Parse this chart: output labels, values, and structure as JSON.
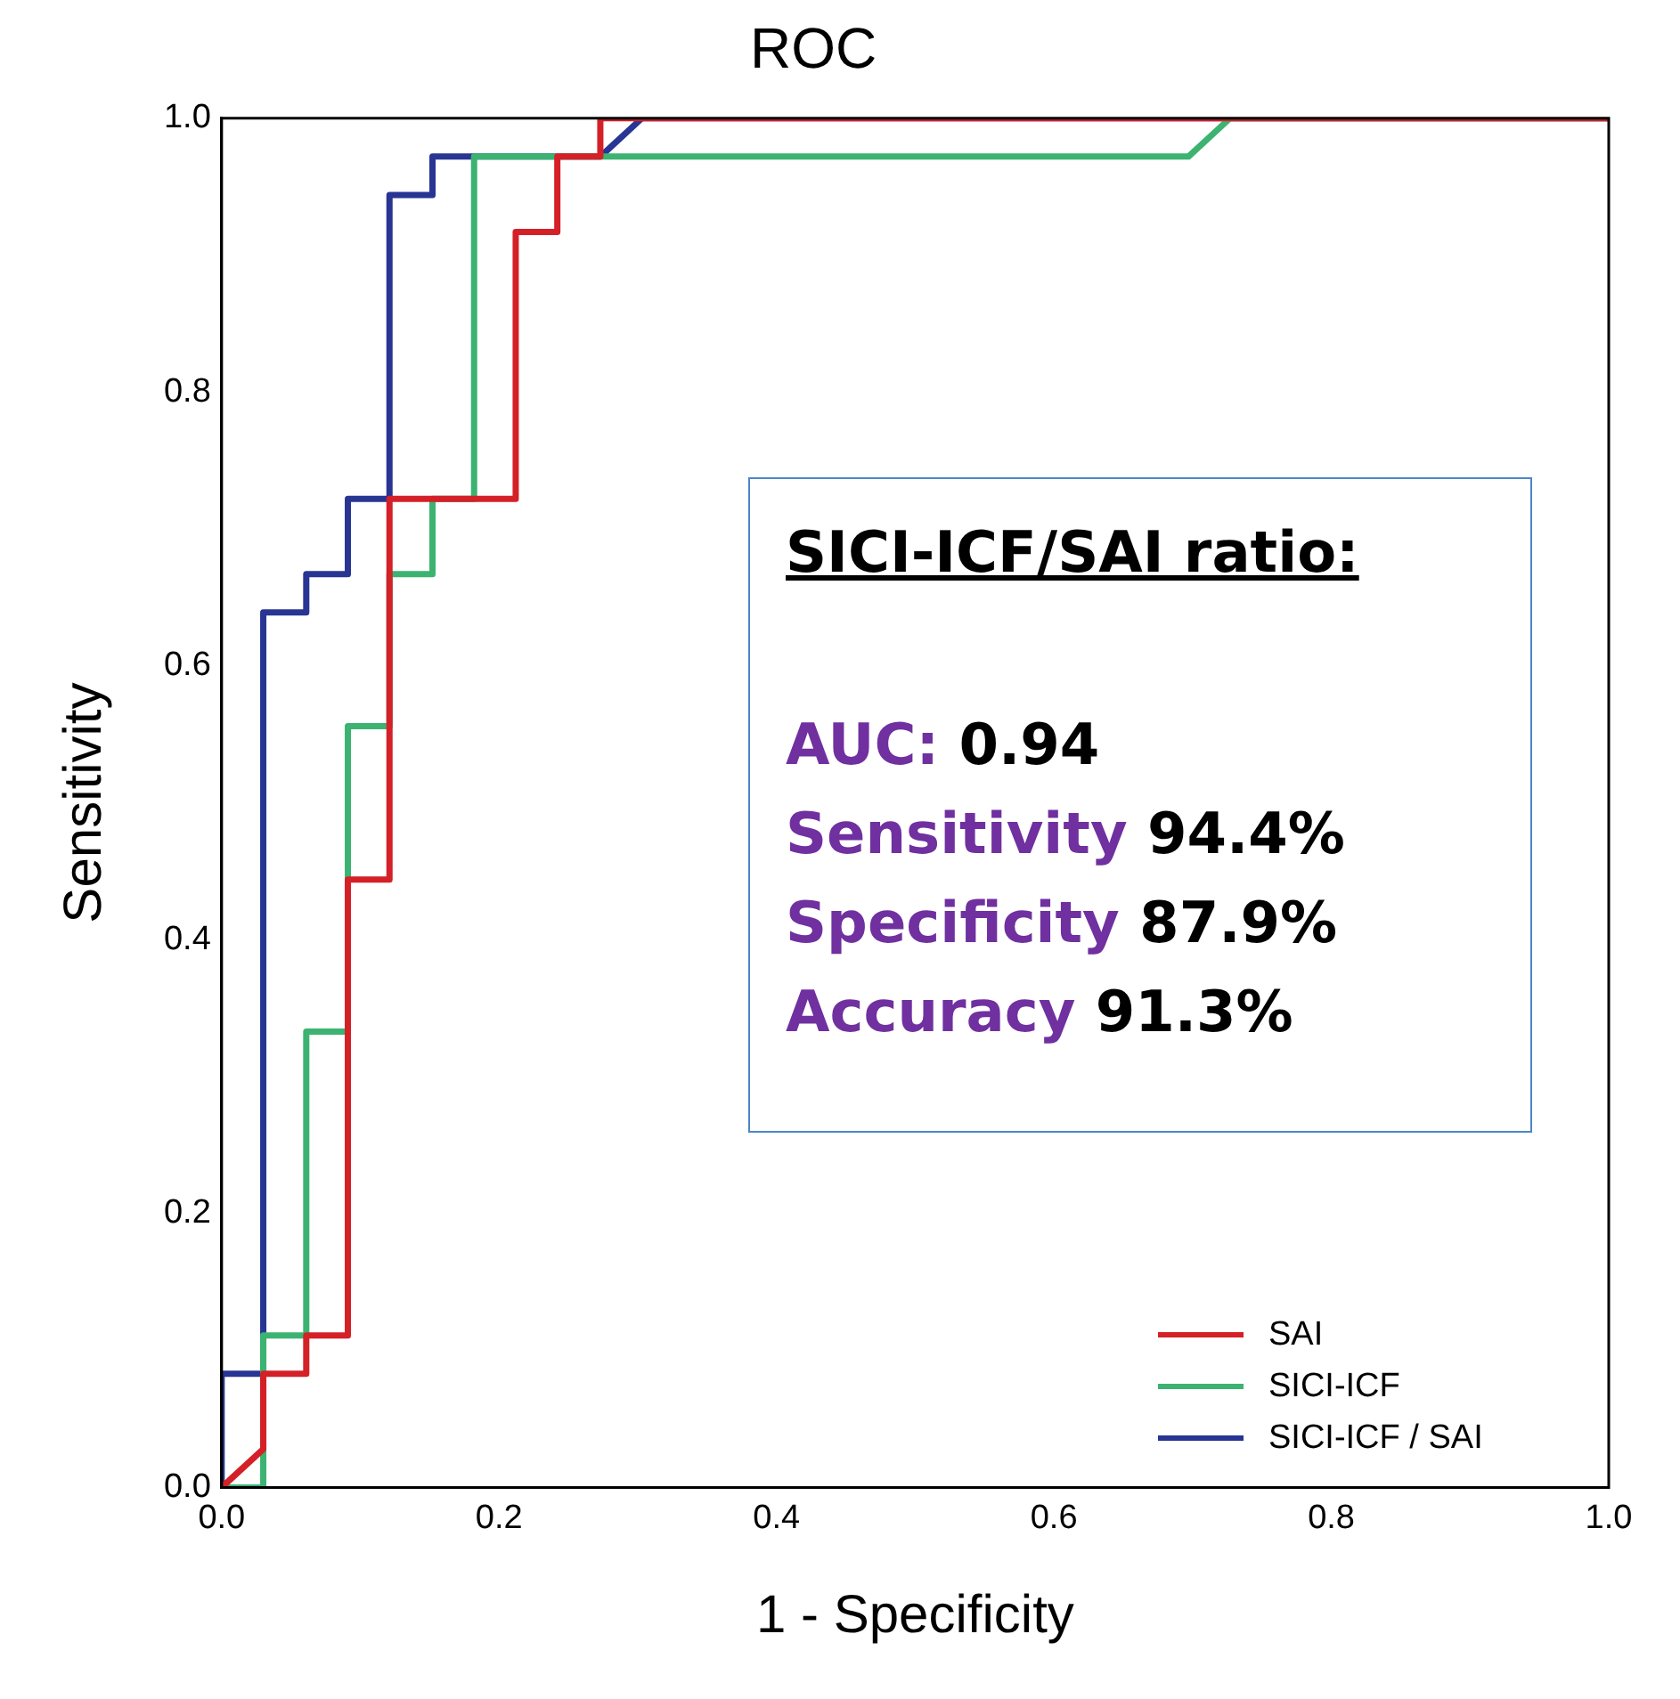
{
  "chart_data": {
    "type": "line",
    "title": "ROC",
    "xlabel": "1 - Specificity",
    "ylabel": "Sensitivity",
    "xlim": [
      0,
      1
    ],
    "ylim": [
      0,
      1
    ],
    "xticks": [
      {
        "value": 0,
        "label": "0.0"
      },
      0.2,
      0.4,
      0.6,
      0.8,
      {
        "value": 1,
        "label": "1.0"
      }
    ],
    "yticks": [
      {
        "value": 0,
        "label": "0.0"
      },
      0.2,
      0.4,
      0.6,
      0.8,
      {
        "value": 1,
        "label": "1.0"
      }
    ],
    "grid": false,
    "legend": "bottom right",
    "marker": "none",
    "line_style": "solid",
    "series": [
      {
        "name": "SAI",
        "color": "#d42027",
        "x": [
          0,
          0.03,
          0.03,
          0.061,
          0.061,
          0.091,
          0.091,
          0.121,
          0.121,
          0.212,
          0.212,
          0.242,
          0.242,
          0.273,
          0.273,
          1
        ],
        "values": [
          0,
          0.028,
          0.083,
          0.083,
          0.111,
          0.111,
          0.444,
          0.444,
          0.722,
          0.722,
          0.917,
          0.917,
          0.972,
          0.972,
          1,
          1
        ]
      },
      {
        "name": "SICI-ICF",
        "color": "#3cb371",
        "x": [
          0,
          0.03,
          0.03,
          0.061,
          0.061,
          0.091,
          0.091,
          0.121,
          0.121,
          0.152,
          0.152,
          0.182,
          0.182,
          0.697,
          0.727,
          1
        ],
        "values": [
          0,
          0,
          0.111,
          0.111,
          0.333,
          0.333,
          0.556,
          0.556,
          0.667,
          0.667,
          0.722,
          0.722,
          0.972,
          0.972,
          1,
          1
        ]
      },
      {
        "name": "SICI-ICF / SAI",
        "color": "#283593",
        "x": [
          0,
          0,
          0.03,
          0.03,
          0.061,
          0.061,
          0.091,
          0.091,
          0.121,
          0.121,
          0.152,
          0.152,
          0.273,
          0.303,
          1
        ],
        "values": [
          0,
          0.083,
          0.083,
          0.639,
          0.639,
          0.667,
          0.667,
          0.722,
          0.722,
          0.944,
          0.944,
          0.972,
          0.972,
          1,
          1
        ]
      }
    ],
    "annotations": [
      "SICI-ICF/SAI ratio:",
      "AUC: 0.94",
      "Sensitivity 94.4%",
      "Specificity 87.9%",
      "Accuracy 91.3%"
    ]
  }
}
